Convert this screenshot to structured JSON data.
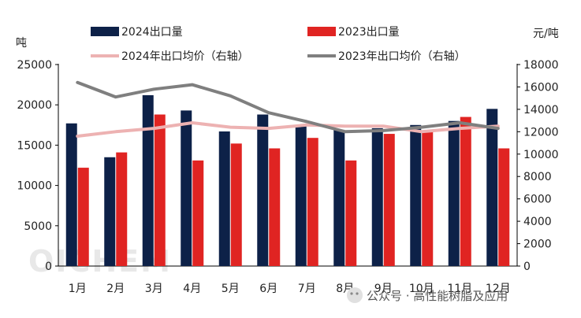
{
  "chart_data": {
    "type": "bar",
    "categories": [
      "1月",
      "2月",
      "3月",
      "4月",
      "5月",
      "6月",
      "7月",
      "8月",
      "9月",
      "10月",
      "11月",
      "12月"
    ],
    "series": [
      {
        "name": "2024出口量",
        "kind": "bar",
        "axis": "left",
        "color": "#0d2148",
        "values": [
          17700,
          13500,
          21200,
          19300,
          16700,
          18800,
          17500,
          16900,
          17100,
          17500,
          18000,
          19500
        ]
      },
      {
        "name": "2023出口量",
        "kind": "bar",
        "axis": "left",
        "color": "#e02422",
        "values": [
          12200,
          14100,
          18800,
          13100,
          15200,
          14600,
          15900,
          13100,
          16400,
          16800,
          18500,
          14600
        ]
      },
      {
        "name": "2024年出口均价（右轴）",
        "kind": "line",
        "axis": "right",
        "color": "#edb2b2",
        "values": [
          11600,
          12000,
          12300,
          12800,
          12400,
          12300,
          12600,
          12500,
          12500,
          12000,
          12300,
          12500
        ]
      },
      {
        "name": "2023年出口均价（右轴）",
        "kind": "line",
        "axis": "right",
        "color": "#7f7f7f",
        "values": [
          16400,
          15100,
          15800,
          16200,
          15200,
          13700,
          12900,
          12000,
          12100,
          12400,
          12800,
          12300
        ]
      }
    ],
    "ylim": [
      0,
      25000
    ],
    "y_ticks": [
      0,
      5000,
      10000,
      15000,
      20000,
      25000
    ],
    "y2lim": [
      0,
      18000
    ],
    "y2_ticks": [
      0,
      2000,
      4000,
      6000,
      8000,
      10000,
      12000,
      14000,
      16000,
      18000
    ],
    "ylabel": "吨",
    "y2label": "元/吨",
    "legend_position": "top",
    "grid": false
  },
  "watermark": "OICHEM",
  "credit": "公众号 · 高性能树脂及应用"
}
